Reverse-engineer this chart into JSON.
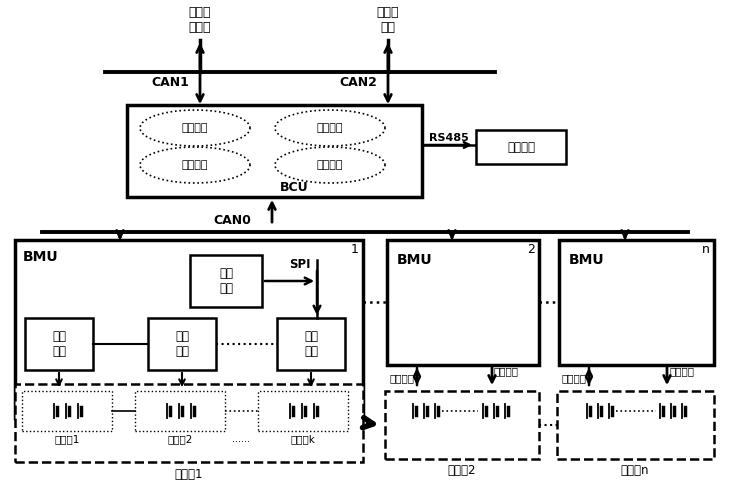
{
  "bg_color": "#ffffff",
  "line_color": "#000000",
  "labels": {
    "car_drive": "车载电\n驱系统",
    "charger": "充电机\n系统",
    "can1": "CAN1",
    "can2": "CAN2",
    "can0": "CAN0",
    "rs485": "RS485",
    "touch": "触屏显示",
    "bcu": "BCU",
    "state_collect": "状态采集",
    "state_observe": "状态观测",
    "state_judge": "状态判定",
    "data_exchange": "数据交互",
    "bmu1_label": "BMU",
    "bmu2_label": "BMU",
    "bmun_label": "BMU",
    "ctrl_chip": "控制\n芯片",
    "spi": "SPI",
    "collect1": "采集\n芯片",
    "collect2": "采集\n芯片",
    "collect3": "采集\n芯片",
    "state_collect2": "状态采集",
    "balance2": "均衡管理",
    "state_collectn": "状态采集",
    "balancen": "均衡管理",
    "brick1": "电池砖1",
    "brick2": "电池砖2",
    "brickk": "电池砖k",
    "group1": "电池组1",
    "group2": "电池组2",
    "groupn": "电池组n",
    "num1": "1",
    "num2": "2",
    "numn": "n"
  }
}
